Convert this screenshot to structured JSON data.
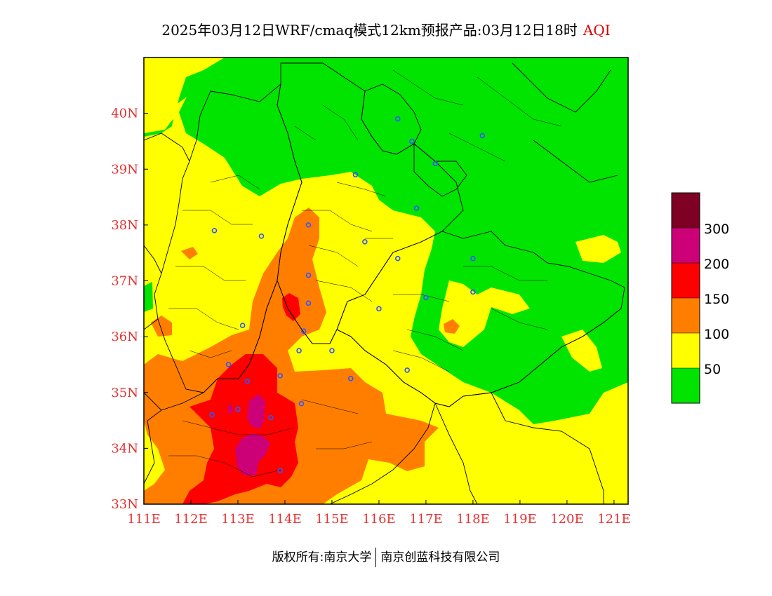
{
  "header": {
    "title": "2025年03月12日WRF/cmaq模式12km预报产品:03月12日18时",
    "product": "AQI"
  },
  "colors": {
    "good": "#00e400",
    "moderate": "#ffff00",
    "usg": "#ff7e00",
    "unhealthy": "#ff0000",
    "very_unhealthy": "#cc0077",
    "hazardous": "#7e0023",
    "city_marker": "#3355ff",
    "tick_label": "#e83030"
  },
  "axes": {
    "lon_min": 111,
    "lon_max": 121.3,
    "lat_min": 33,
    "lat_max": 41,
    "x_ticks": [
      "111E",
      "112E",
      "113E",
      "114E",
      "115E",
      "116E",
      "117E",
      "118E",
      "119E",
      "120E",
      "121E"
    ],
    "y_ticks": [
      "33N",
      "34N",
      "35N",
      "36N",
      "37N",
      "38N",
      "39N",
      "40N"
    ]
  },
  "legend": {
    "labels": [
      "50",
      "100",
      "150",
      "200",
      "300"
    ]
  },
  "cities": [
    {
      "lon": 116.4,
      "lat": 39.9
    },
    {
      "lon": 117.2,
      "lat": 39.1
    },
    {
      "lon": 118.2,
      "lat": 39.6
    },
    {
      "lon": 116.7,
      "lat": 39.5
    },
    {
      "lon": 115.5,
      "lat": 38.9
    },
    {
      "lon": 116.8,
      "lat": 38.3
    },
    {
      "lon": 114.5,
      "lat": 38.0
    },
    {
      "lon": 112.5,
      "lat": 37.9
    },
    {
      "lon": 113.5,
      "lat": 37.8
    },
    {
      "lon": 115.7,
      "lat": 37.7
    },
    {
      "lon": 116.4,
      "lat": 37.4
    },
    {
      "lon": 118.0,
      "lat": 37.4
    },
    {
      "lon": 114.5,
      "lat": 37.1
    },
    {
      "lon": 114.5,
      "lat": 36.6
    },
    {
      "lon": 117.0,
      "lat": 36.7
    },
    {
      "lon": 118.0,
      "lat": 36.8
    },
    {
      "lon": 116.0,
      "lat": 36.5
    },
    {
      "lon": 114.4,
      "lat": 36.1
    },
    {
      "lon": 113.1,
      "lat": 36.2
    },
    {
      "lon": 114.3,
      "lat": 35.75
    },
    {
      "lon": 115.0,
      "lat": 35.75
    },
    {
      "lon": 112.8,
      "lat": 35.5
    },
    {
      "lon": 113.9,
      "lat": 35.3
    },
    {
      "lon": 113.2,
      "lat": 35.2
    },
    {
      "lon": 115.4,
      "lat": 35.25
    },
    {
      "lon": 116.6,
      "lat": 35.4
    },
    {
      "lon": 114.35,
      "lat": 34.8
    },
    {
      "lon": 113.7,
      "lat": 34.55
    },
    {
      "lon": 112.45,
      "lat": 34.6
    },
    {
      "lon": 113.9,
      "lat": 33.6
    },
    {
      "lon": 113.0,
      "lat": 34.7
    }
  ],
  "copyright": {
    "left": "版权所有:南京大学",
    "right": "南京创蓝科技有限公司"
  }
}
